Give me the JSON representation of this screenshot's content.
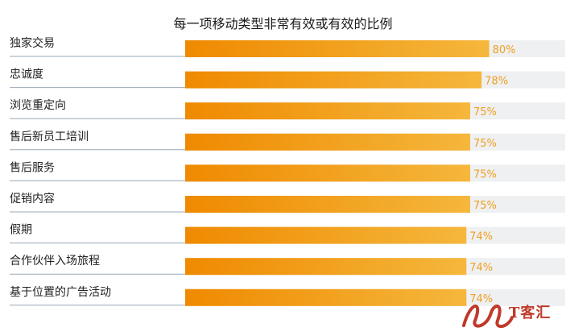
{
  "chart_data": {
    "type": "bar",
    "orientation": "horizontal",
    "title": "每一项移动类型非常有效或有效的比例",
    "categories": [
      "独家交易",
      "忠诚度",
      "浏览重定向",
      "售后新员工培训",
      "售后服务",
      "促销内容",
      "假期",
      "合作伙伴入场旅程",
      "基于位置的广告活动"
    ],
    "values": [
      80,
      78,
      75,
      75,
      75,
      75,
      74,
      74,
      74
    ],
    "value_labels": [
      "80%",
      "78%",
      "75%",
      "75%",
      "75%",
      "75%",
      "74%",
      "74%",
      "74%"
    ],
    "xlim": [
      0,
      100
    ],
    "unit": "%",
    "colors": {
      "bar_start": "#ef8a00",
      "bar_end": "#f5b73c",
      "track": "#eef0f2",
      "value_text": "#f0a020",
      "separator": "#9aa8b8"
    }
  },
  "watermark": {
    "text": "T客汇"
  }
}
